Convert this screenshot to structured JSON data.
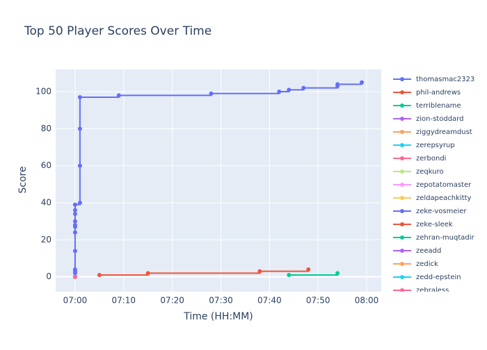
{
  "chart_data": {
    "type": "line",
    "line_shape": "hv",
    "title": "Top 50 Player Scores Over Time",
    "x_label": "Time (HH:MM)",
    "y_label": "Score",
    "xlim": [
      "06:56",
      "08:03"
    ],
    "xticks": [
      "07:00",
      "07:10",
      "07:20",
      "07:30",
      "07:40",
      "07:50",
      "08:00"
    ],
    "ylim": [
      -8,
      112
    ],
    "yticks": [
      0,
      20,
      40,
      60,
      80,
      100
    ],
    "grid": true,
    "legend": "right",
    "series": [
      {
        "name": "thomasmac2323",
        "color": "#636efa",
        "x": [
          "07:00",
          "07:00",
          "07:00",
          "07:00",
          "07:00",
          "07:00",
          "07:00",
          "07:00",
          "07:00",
          "07:00",
          "07:00",
          "07:00",
          "07:01",
          "07:01",
          "07:01",
          "07:01",
          "07:09",
          "07:28",
          "07:42",
          "07:44",
          "07:47",
          "07:54",
          "07:54",
          "07:59"
        ],
        "values": [
          0,
          2,
          3,
          4,
          14,
          24,
          27,
          28,
          30,
          34,
          36,
          39,
          40,
          60,
          80,
          97,
          98,
          99,
          100,
          101,
          102,
          103,
          104,
          105
        ]
      },
      {
        "name": "phil-andrews",
        "color": "#ef553b",
        "x": [
          "07:05",
          "07:15",
          "07:38",
          "07:48"
        ],
        "values": [
          1,
          2,
          3,
          4
        ]
      },
      {
        "name": "terriblename",
        "color": "#00cc96",
        "x": [
          "07:44",
          "07:54"
        ],
        "values": [
          1,
          2
        ]
      },
      {
        "name": "zion-stoddard",
        "color": "#ab63fa",
        "x": [
          "07:00"
        ],
        "values": [
          0
        ]
      },
      {
        "name": "ziggydreamdust",
        "color": "#ffa15a",
        "x": [
          "07:00"
        ],
        "values": [
          0
        ]
      },
      {
        "name": "zerepsyrup",
        "color": "#19d3f3",
        "x": [
          "07:00"
        ],
        "values": [
          0
        ]
      },
      {
        "name": "zerbondi",
        "color": "#ff6692",
        "x": [
          "07:00"
        ],
        "values": [
          0
        ]
      },
      {
        "name": "zeqkuro",
        "color": "#b6e880",
        "x": [
          "07:00"
        ],
        "values": [
          0
        ]
      },
      {
        "name": "zepotatomaster",
        "color": "#ff97ff",
        "x": [
          "07:00"
        ],
        "values": [
          0
        ]
      },
      {
        "name": "zeldapeachkitty",
        "color": "#fecb52",
        "x": [
          "07:00"
        ],
        "values": [
          0
        ]
      },
      {
        "name": "zeke-vosmeier",
        "color": "#636efa",
        "x": [
          "07:00"
        ],
        "values": [
          0
        ]
      },
      {
        "name": "zeke-sleek",
        "color": "#ef553b",
        "x": [
          "07:00"
        ],
        "values": [
          0
        ]
      },
      {
        "name": "zehran-muqtadir",
        "color": "#00cc96",
        "x": [
          "07:00"
        ],
        "values": [
          0
        ]
      },
      {
        "name": "zeeadd",
        "color": "#ab63fa",
        "x": [
          "07:00"
        ],
        "values": [
          0
        ]
      },
      {
        "name": "zedick",
        "color": "#ffa15a",
        "x": [
          "07:00"
        ],
        "values": [
          0
        ]
      },
      {
        "name": "zedd-epstein",
        "color": "#19d3f3",
        "x": [
          "07:00"
        ],
        "values": [
          0
        ]
      },
      {
        "name": "zebraless",
        "color": "#ff6692",
        "x": [
          "07:00"
        ],
        "values": [
          0
        ]
      }
    ]
  }
}
